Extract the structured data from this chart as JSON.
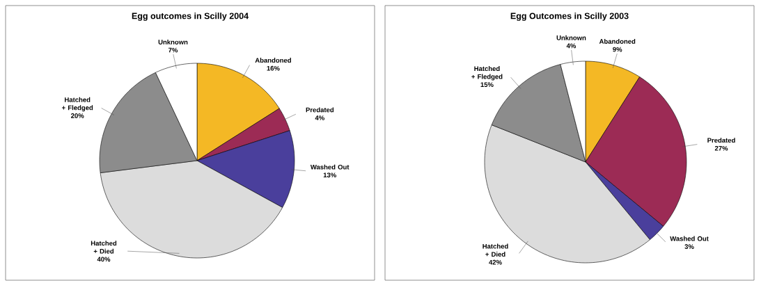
{
  "chart_data": [
    {
      "type": "pie",
      "title": "Egg outcomes in Scilly 2004",
      "categories": [
        "Abandoned",
        "Predated",
        "Washed Out",
        "Hatched + Died",
        "Hatched + Fledged",
        "Unknown"
      ],
      "values": [
        16,
        4,
        13,
        40,
        20,
        7
      ],
      "value_labels": [
        "16%",
        "4%",
        "13%",
        "40%",
        "20%",
        "7%"
      ],
      "colors": [
        "#f4b825",
        "#9c2b55",
        "#4a3f9c",
        "#dcdcdc",
        "#8c8c8c",
        "#ffffff"
      ]
    },
    {
      "type": "pie",
      "title": "Egg Outcomes in Scilly  2003",
      "categories": [
        "Abandoned",
        "Predated",
        "Washed Out",
        "Hatched + Died",
        "Hatched + Fledged",
        "Unknown"
      ],
      "values": [
        9,
        27,
        3,
        42,
        15,
        4
      ],
      "value_labels": [
        "9%",
        "27%",
        "3%",
        "42%",
        "15%",
        "4%"
      ],
      "colors": [
        "#f4b825",
        "#9c2b55",
        "#4a3f9c",
        "#dcdcdc",
        "#8c8c8c",
        "#ffffff"
      ]
    }
  ]
}
